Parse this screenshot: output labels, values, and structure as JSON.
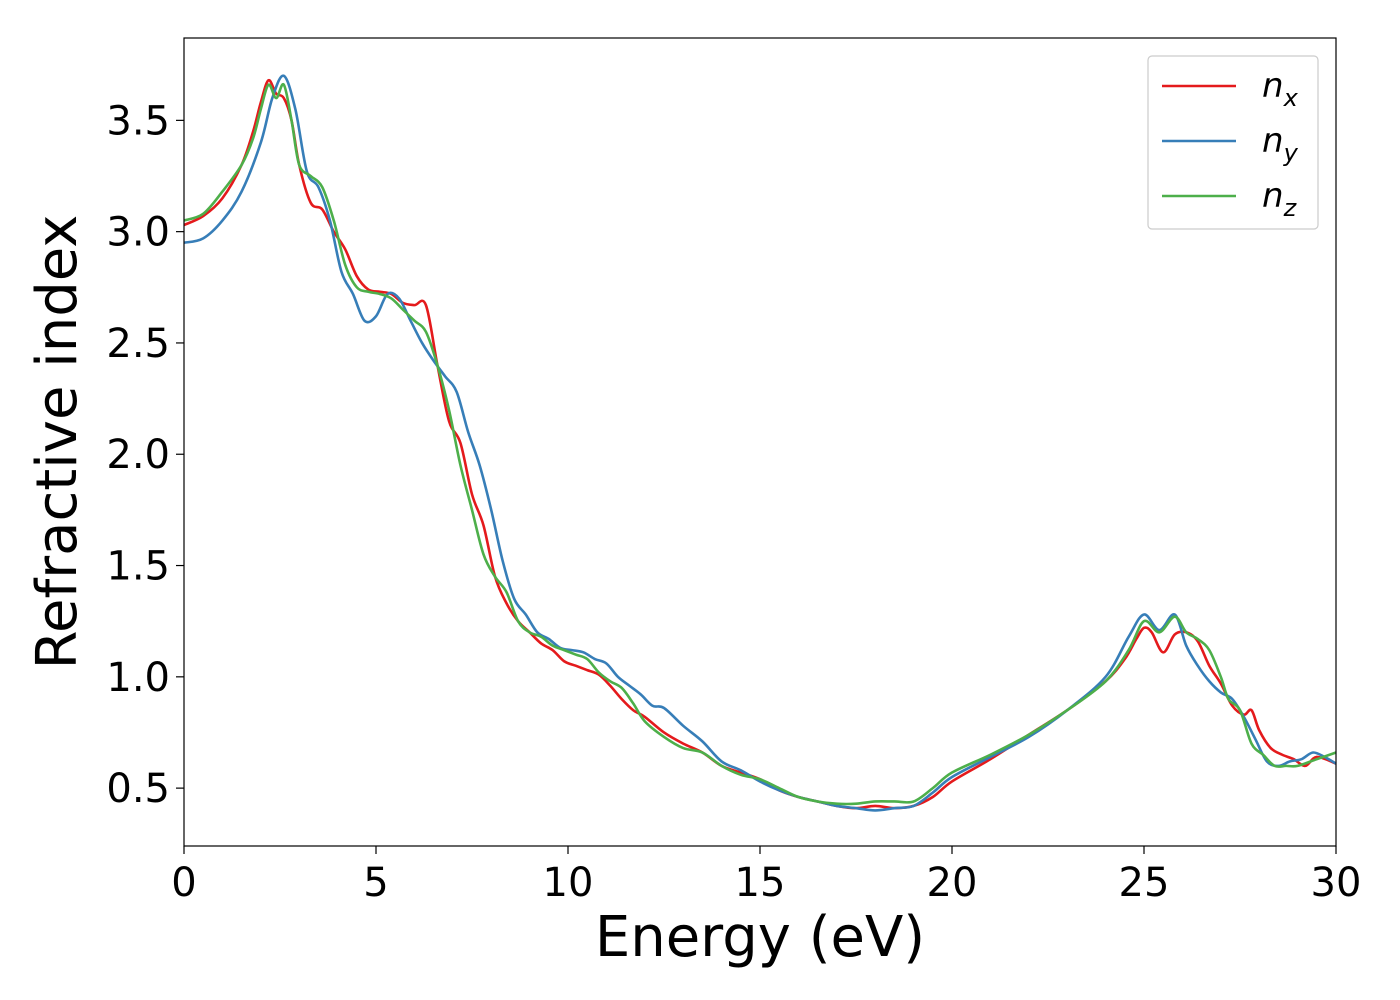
{
  "chart_data": {
    "type": "line",
    "xlabel": "Energy (eV)",
    "ylabel": "Refractive index",
    "xlim": [
      0,
      30
    ],
    "ylim": [
      0.24,
      3.87
    ],
    "xticks": [
      0,
      5,
      10,
      15,
      20,
      25,
      30
    ],
    "xtick_labels": [
      "0",
      "5",
      "10",
      "15",
      "20",
      "25",
      "30"
    ],
    "yticks": [
      0.5,
      1.0,
      1.5,
      2.0,
      2.5,
      3.0,
      3.5
    ],
    "ytick_labels": [
      "0.5",
      "1.0",
      "1.5",
      "2.0",
      "2.5",
      "3.0",
      "3.5"
    ],
    "grid": false,
    "legend": "top-right",
    "series": [
      {
        "name": "n_x",
        "label_base": "n",
        "label_sub": "x",
        "color": "#e41a1c",
        "x": [
          0,
          0.5,
          1.0,
          1.5,
          1.8,
          2.0,
          2.2,
          2.4,
          2.6,
          2.8,
          3.0,
          3.3,
          3.6,
          3.9,
          4.2,
          4.5,
          4.8,
          5.1,
          5.4,
          5.7,
          6.0,
          6.3,
          6.6,
          6.9,
          7.2,
          7.5,
          7.8,
          8.1,
          8.4,
          8.7,
          9.0,
          9.3,
          9.6,
          9.9,
          10.2,
          10.5,
          10.8,
          11.1,
          11.4,
          11.7,
          12.0,
          12.5,
          13.0,
          13.5,
          14.0,
          14.5,
          15.0,
          15.5,
          16.0,
          16.5,
          17.0,
          17.5,
          18.0,
          18.5,
          19.0,
          19.5,
          20.0,
          21.0,
          22.0,
          23.0,
          24.0,
          24.5,
          24.8,
          25.0,
          25.2,
          25.5,
          25.8,
          26.1,
          26.4,
          26.7,
          27.0,
          27.3,
          27.6,
          27.8,
          28.0,
          28.3,
          28.6,
          28.9,
          29.2,
          29.5,
          30.0
        ],
        "y": [
          3.03,
          3.07,
          3.15,
          3.3,
          3.45,
          3.58,
          3.68,
          3.62,
          3.6,
          3.5,
          3.3,
          3.13,
          3.1,
          3.0,
          2.92,
          2.8,
          2.74,
          2.73,
          2.72,
          2.68,
          2.67,
          2.67,
          2.4,
          2.15,
          2.05,
          1.82,
          1.68,
          1.45,
          1.33,
          1.25,
          1.2,
          1.15,
          1.12,
          1.07,
          1.05,
          1.03,
          1.01,
          0.96,
          0.9,
          0.85,
          0.82,
          0.75,
          0.7,
          0.66,
          0.6,
          0.57,
          0.54,
          0.49,
          0.46,
          0.44,
          0.42,
          0.41,
          0.42,
          0.41,
          0.42,
          0.46,
          0.53,
          0.63,
          0.74,
          0.85,
          0.98,
          1.08,
          1.17,
          1.22,
          1.2,
          1.11,
          1.19,
          1.2,
          1.16,
          1.05,
          0.97,
          0.87,
          0.83,
          0.85,
          0.76,
          0.68,
          0.65,
          0.63,
          0.6,
          0.64,
          0.61
        ]
      },
      {
        "name": "n_y",
        "label_base": "n",
        "label_sub": "y",
        "color": "#377eb8",
        "x": [
          0,
          0.5,
          1.0,
          1.5,
          2.0,
          2.3,
          2.6,
          2.9,
          3.2,
          3.5,
          3.8,
          4.1,
          4.4,
          4.7,
          5.0,
          5.3,
          5.6,
          5.9,
          6.2,
          6.5,
          6.8,
          7.1,
          7.4,
          7.7,
          8.0,
          8.3,
          8.6,
          8.9,
          9.2,
          9.5,
          9.8,
          10.1,
          10.4,
          10.7,
          11.0,
          11.3,
          11.6,
          11.9,
          12.2,
          12.5,
          13.0,
          13.5,
          14.0,
          14.5,
          15.0,
          15.5,
          16.0,
          16.5,
          17.0,
          17.5,
          18.0,
          18.5,
          19.0,
          19.5,
          20.0,
          21.0,
          22.0,
          23.0,
          24.0,
          24.6,
          25.0,
          25.4,
          25.8,
          26.1,
          26.4,
          26.7,
          27.0,
          27.3,
          27.6,
          27.9,
          28.2,
          28.5,
          28.8,
          29.1,
          29.4,
          29.7,
          30.0
        ],
        "y": [
          2.95,
          2.97,
          3.05,
          3.18,
          3.4,
          3.6,
          3.7,
          3.55,
          3.27,
          3.2,
          3.05,
          2.82,
          2.72,
          2.6,
          2.62,
          2.72,
          2.7,
          2.6,
          2.5,
          2.42,
          2.35,
          2.28,
          2.1,
          1.95,
          1.75,
          1.52,
          1.35,
          1.28,
          1.2,
          1.17,
          1.13,
          1.12,
          1.11,
          1.08,
          1.06,
          1.0,
          0.96,
          0.92,
          0.87,
          0.86,
          0.78,
          0.71,
          0.62,
          0.58,
          0.53,
          0.49,
          0.46,
          0.44,
          0.42,
          0.41,
          0.4,
          0.41,
          0.42,
          0.48,
          0.55,
          0.64,
          0.73,
          0.85,
          1.0,
          1.18,
          1.28,
          1.21,
          1.28,
          1.14,
          1.05,
          0.98,
          0.93,
          0.9,
          0.82,
          0.72,
          0.62,
          0.6,
          0.62,
          0.63,
          0.66,
          0.64,
          0.61
        ]
      },
      {
        "name": "n_z",
        "label_base": "n",
        "label_sub": "z",
        "color": "#4daf4a",
        "x": [
          0,
          0.5,
          1.0,
          1.5,
          1.8,
          2.0,
          2.2,
          2.4,
          2.6,
          2.8,
          3.0,
          3.3,
          3.6,
          3.9,
          4.2,
          4.5,
          4.8,
          5.1,
          5.4,
          5.7,
          6.0,
          6.3,
          6.6,
          6.9,
          7.2,
          7.5,
          7.8,
          8.1,
          8.4,
          8.7,
          9.0,
          9.3,
          9.6,
          9.9,
          10.2,
          10.5,
          10.8,
          11.1,
          11.4,
          11.7,
          12.0,
          12.5,
          13.0,
          13.5,
          14.0,
          14.5,
          15.0,
          15.5,
          16.0,
          16.5,
          17.0,
          17.5,
          18.0,
          18.5,
          19.0,
          19.5,
          20.0,
          21.0,
          22.0,
          23.0,
          24.0,
          24.6,
          25.0,
          25.4,
          25.8,
          26.1,
          26.4,
          26.7,
          27.0,
          27.2,
          27.5,
          27.8,
          28.1,
          28.4,
          28.7,
          29.0,
          29.5,
          30.0
        ],
        "y": [
          3.05,
          3.08,
          3.18,
          3.3,
          3.42,
          3.55,
          3.66,
          3.6,
          3.66,
          3.5,
          3.3,
          3.25,
          3.2,
          3.05,
          2.85,
          2.75,
          2.73,
          2.72,
          2.7,
          2.65,
          2.6,
          2.55,
          2.4,
          2.2,
          1.95,
          1.75,
          1.55,
          1.45,
          1.38,
          1.25,
          1.2,
          1.18,
          1.14,
          1.12,
          1.1,
          1.08,
          1.02,
          0.98,
          0.95,
          0.88,
          0.8,
          0.73,
          0.68,
          0.66,
          0.6,
          0.56,
          0.54,
          0.5,
          0.46,
          0.44,
          0.43,
          0.43,
          0.44,
          0.44,
          0.44,
          0.5,
          0.57,
          0.65,
          0.74,
          0.85,
          0.98,
          1.12,
          1.25,
          1.2,
          1.27,
          1.2,
          1.17,
          1.12,
          1.0,
          0.9,
          0.85,
          0.7,
          0.65,
          0.6,
          0.6,
          0.6,
          0.63,
          0.66
        ]
      }
    ]
  }
}
